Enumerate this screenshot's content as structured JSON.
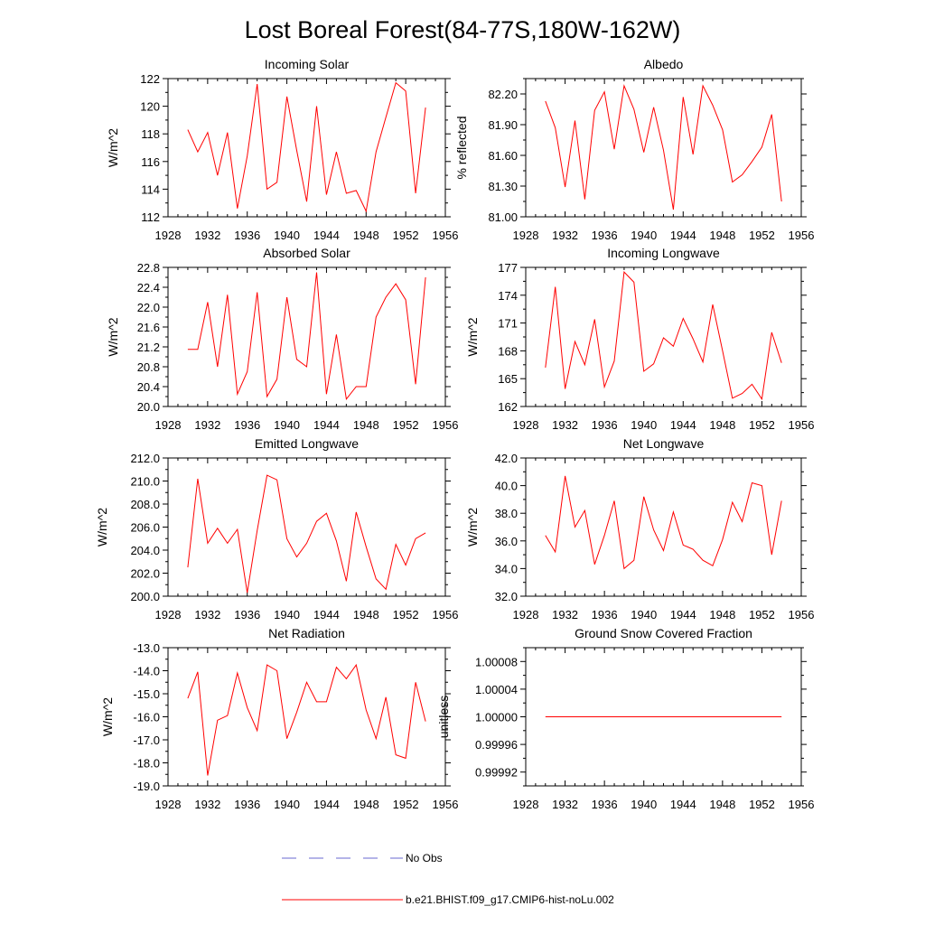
{
  "title": "Lost Boreal Forest(84-77S,180W-162W)",
  "colors": {
    "series": "#ff0000",
    "obs": "#6a6ad0",
    "axis": "#000000"
  },
  "legend": {
    "obs_label": "No Obs",
    "model_label": "b.e21.BHIST.f09_g17.CMIP6-hist-noLu.002"
  },
  "chart_data": [
    {
      "type": "line",
      "title": "Incoming Solar",
      "ylabel": "W/m^2",
      "xlim": [
        1928,
        1956
      ],
      "ylim": [
        112,
        122
      ],
      "xticks": [
        1928,
        1932,
        1936,
        1940,
        1944,
        1948,
        1952,
        1956
      ],
      "xtick_labels": [
        "1928",
        "1932",
        "1936",
        "1940",
        "1944",
        "1948",
        "1952",
        "1956"
      ],
      "yticks": [
        112,
        114,
        116,
        118,
        120,
        122
      ],
      "ytick_labels": [
        "112",
        "114",
        "116",
        "118",
        "120",
        "122"
      ],
      "x": [
        1930,
        1931,
        1932,
        1933,
        1934,
        1935,
        1936,
        1937,
        1938,
        1939,
        1940,
        1941,
        1942,
        1943,
        1944,
        1945,
        1946,
        1947,
        1948,
        1949,
        1950,
        1951,
        1952,
        1953,
        1954
      ],
      "values": [
        118.3,
        116.7,
        118.1,
        115.0,
        118.1,
        112.6,
        116.4,
        121.6,
        114.0,
        114.5,
        120.7,
        116.8,
        113.1,
        120.0,
        113.6,
        116.7,
        113.7,
        113.9,
        112.4,
        116.7,
        119.2,
        121.7,
        121.1,
        113.7,
        119.9
      ]
    },
    {
      "type": "line",
      "title": "Albedo",
      "ylabel": "% reflected",
      "xlim": [
        1928,
        1956
      ],
      "ylim": [
        81.0,
        82.35
      ],
      "xticks": [
        1928,
        1932,
        1936,
        1940,
        1944,
        1948,
        1952,
        1956
      ],
      "xtick_labels": [
        "1928",
        "1932",
        "1936",
        "1940",
        "1944",
        "1948",
        "1952",
        "1956"
      ],
      "yticks": [
        81.0,
        81.3,
        81.6,
        81.9,
        82.2
      ],
      "ytick_labels": [
        "81.00",
        "81.30",
        "81.60",
        "81.90",
        "82.20"
      ],
      "x": [
        1930,
        1931,
        1932,
        1933,
        1934,
        1935,
        1936,
        1937,
        1938,
        1939,
        1940,
        1941,
        1942,
        1943,
        1944,
        1945,
        1946,
        1947,
        1948,
        1949,
        1950,
        1951,
        1952,
        1953,
        1954
      ],
      "values": [
        82.13,
        81.87,
        81.29,
        81.94,
        81.17,
        82.04,
        82.22,
        81.66,
        82.28,
        82.05,
        81.63,
        82.07,
        81.65,
        81.07,
        82.17,
        81.61,
        82.28,
        82.09,
        81.85,
        81.34,
        81.41,
        81.54,
        81.68,
        82.0,
        81.15
      ]
    },
    {
      "type": "line",
      "title": "Absorbed Solar",
      "ylabel": "W/m^2",
      "xlim": [
        1928,
        1956
      ],
      "ylim": [
        20.0,
        22.8
      ],
      "xticks": [
        1928,
        1932,
        1936,
        1940,
        1944,
        1948,
        1952,
        1956
      ],
      "xtick_labels": [
        "1928",
        "1932",
        "1936",
        "1940",
        "1944",
        "1948",
        "1952",
        "1956"
      ],
      "yticks": [
        20.0,
        20.4,
        20.8,
        21.2,
        21.6,
        22.0,
        22.4,
        22.8
      ],
      "ytick_labels": [
        "20.0",
        "20.4",
        "20.8",
        "21.2",
        "21.6",
        "22.0",
        "22.4",
        "22.8"
      ],
      "x": [
        1930,
        1931,
        1932,
        1933,
        1934,
        1935,
        1936,
        1937,
        1938,
        1939,
        1940,
        1941,
        1942,
        1943,
        1944,
        1945,
        1946,
        1947,
        1948,
        1949,
        1950,
        1951,
        1952,
        1953,
        1954
      ],
      "values": [
        21.15,
        21.15,
        22.1,
        20.8,
        22.25,
        20.25,
        20.7,
        22.3,
        20.2,
        20.55,
        22.2,
        20.95,
        20.8,
        22.7,
        20.25,
        21.45,
        20.15,
        20.4,
        20.4,
        21.8,
        22.2,
        22.47,
        22.15,
        20.45,
        22.6
      ]
    },
    {
      "type": "line",
      "title": "Incoming Longwave",
      "ylabel": "W/m^2",
      "xlim": [
        1928,
        1956
      ],
      "ylim": [
        162,
        177
      ],
      "xticks": [
        1928,
        1932,
        1936,
        1940,
        1944,
        1948,
        1952,
        1956
      ],
      "xtick_labels": [
        "1928",
        "1932",
        "1936",
        "1940",
        "1944",
        "1948",
        "1952",
        "1956"
      ],
      "yticks": [
        162,
        165,
        168,
        171,
        174,
        177
      ],
      "ytick_labels": [
        "162",
        "165",
        "168",
        "171",
        "174",
        "177"
      ],
      "x": [
        1930,
        1931,
        1932,
        1933,
        1934,
        1935,
        1936,
        1937,
        1938,
        1939,
        1940,
        1941,
        1942,
        1943,
        1944,
        1945,
        1946,
        1947,
        1948,
        1949,
        1950,
        1951,
        1952,
        1953,
        1954
      ],
      "values": [
        166.2,
        174.9,
        163.9,
        169.0,
        166.5,
        171.4,
        164.1,
        166.9,
        176.5,
        175.4,
        165.8,
        166.6,
        169.4,
        168.5,
        171.5,
        169.3,
        166.8,
        173.0,
        168.0,
        162.9,
        163.4,
        164.4,
        162.8,
        170.0,
        166.7
      ]
    },
    {
      "type": "line",
      "title": "Emitted Longwave",
      "ylabel": "W/m^2",
      "xlim": [
        1928,
        1956
      ],
      "ylim": [
        200.0,
        212.0
      ],
      "xticks": [
        1928,
        1932,
        1936,
        1940,
        1944,
        1948,
        1952,
        1956
      ],
      "xtick_labels": [
        "1928",
        "1932",
        "1936",
        "1940",
        "1944",
        "1948",
        "1952",
        "1956"
      ],
      "yticks": [
        200,
        202,
        204,
        206,
        208,
        210,
        212
      ],
      "ytick_labels": [
        "200.0",
        "202.0",
        "204.0",
        "206.0",
        "208.0",
        "210.0",
        "212.0"
      ],
      "x": [
        1930,
        1931,
        1932,
        1933,
        1934,
        1935,
        1936,
        1937,
        1938,
        1939,
        1940,
        1941,
        1942,
        1943,
        1944,
        1945,
        1946,
        1947,
        1948,
        1949,
        1950,
        1951,
        1952,
        1953,
        1954
      ],
      "values": [
        202.5,
        210.2,
        204.6,
        205.9,
        204.6,
        205.8,
        200.3,
        205.7,
        210.5,
        210.1,
        205.0,
        203.4,
        204.6,
        206.5,
        207.2,
        204.8,
        201.3,
        207.3,
        204.3,
        201.5,
        200.6,
        204.5,
        202.7,
        205.0,
        205.5
      ]
    },
    {
      "type": "line",
      "title": "Net Longwave",
      "ylabel": "W/m^2",
      "xlim": [
        1928,
        1956
      ],
      "ylim": [
        32.0,
        42.0
      ],
      "xticks": [
        1928,
        1932,
        1936,
        1940,
        1944,
        1948,
        1952,
        1956
      ],
      "xtick_labels": [
        "1928",
        "1932",
        "1936",
        "1940",
        "1944",
        "1948",
        "1952",
        "1956"
      ],
      "yticks": [
        32,
        34,
        36,
        38,
        40,
        42
      ],
      "ytick_labels": [
        "32.0",
        "34.0",
        "36.0",
        "38.0",
        "40.0",
        "42.0"
      ],
      "x": [
        1930,
        1931,
        1932,
        1933,
        1934,
        1935,
        1936,
        1937,
        1938,
        1939,
        1940,
        1941,
        1942,
        1943,
        1944,
        1945,
        1946,
        1947,
        1948,
        1949,
        1950,
        1951,
        1952,
        1953,
        1954
      ],
      "values": [
        36.4,
        35.2,
        40.7,
        37.0,
        38.2,
        34.3,
        36.4,
        38.9,
        34.0,
        34.6,
        39.2,
        36.8,
        35.3,
        38.1,
        35.7,
        35.4,
        34.6,
        34.2,
        36.1,
        38.8,
        37.4,
        40.2,
        40.0,
        35.0,
        38.9
      ]
    },
    {
      "type": "line",
      "title": "Net Radiation",
      "ylabel": "W/m^2",
      "xlim": [
        1928,
        1956
      ],
      "ylim": [
        -19.0,
        -13.0
      ],
      "xticks": [
        1928,
        1932,
        1936,
        1940,
        1944,
        1948,
        1952,
        1956
      ],
      "xtick_labels": [
        "1928",
        "1932",
        "1936",
        "1940",
        "1944",
        "1948",
        "1952",
        "1956"
      ],
      "yticks": [
        -19,
        -18,
        -17,
        -16,
        -15,
        -14,
        -13
      ],
      "ytick_labels": [
        "-19.0",
        "-18.0",
        "-17.0",
        "-16.0",
        "-15.0",
        "-14.0",
        "-13.0"
      ],
      "x": [
        1930,
        1931,
        1932,
        1933,
        1934,
        1935,
        1936,
        1937,
        1938,
        1939,
        1940,
        1941,
        1942,
        1943,
        1944,
        1945,
        1946,
        1947,
        1948,
        1949,
        1950,
        1951,
        1952,
        1953,
        1954
      ],
      "values": [
        -15.2,
        -14.05,
        -18.55,
        -16.15,
        -15.95,
        -14.1,
        -15.6,
        -16.6,
        -13.75,
        -14.0,
        -16.95,
        -15.8,
        -14.5,
        -15.35,
        -15.35,
        -13.85,
        -14.35,
        -13.75,
        -15.7,
        -16.95,
        -15.15,
        -17.65,
        -17.8,
        -14.5,
        -16.2
      ]
    },
    {
      "type": "line",
      "title": "Ground Snow Covered Fraction",
      "ylabel": "unitless",
      "xlim": [
        1928,
        1956
      ],
      "ylim": [
        0.9999,
        1.0001
      ],
      "xticks": [
        1928,
        1932,
        1936,
        1940,
        1944,
        1948,
        1952,
        1956
      ],
      "xtick_labels": [
        "1928",
        "1932",
        "1936",
        "1940",
        "1944",
        "1948",
        "1952",
        "1956"
      ],
      "yticks": [
        0.99992,
        0.99996,
        1.0,
        1.00004,
        1.00008
      ],
      "ytick_labels": [
        "0.99992",
        "0.99996",
        "1.00000",
        "1.00004",
        "1.00008"
      ],
      "x": [
        1930,
        1954
      ],
      "values": [
        1.0,
        1.0
      ]
    }
  ]
}
